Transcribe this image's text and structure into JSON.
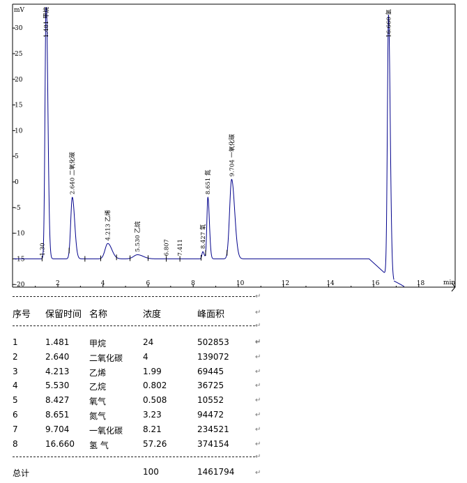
{
  "chart_data": {
    "type": "line",
    "y_unit": "mV",
    "x_unit": "min",
    "xlim": [
      0,
      18.5
    ],
    "ylim": [
      -20,
      34
    ],
    "x_ticks": [
      2,
      4,
      6,
      8,
      10,
      12,
      14,
      16,
      18
    ],
    "y_ticks": [
      30,
      25,
      20,
      15,
      10,
      5,
      0,
      -5,
      -10,
      -15,
      -20
    ],
    "baseline": -15,
    "peaks": [
      {
        "rt": 1.481,
        "label": "1.481 甲烷",
        "height": 36,
        "width": 0.05
      },
      {
        "rt": 2.64,
        "label": "2.640 二氧化碳",
        "height": -3,
        "width": 0.07
      },
      {
        "rt": 4.213,
        "label": "4.213 乙烯",
        "height": -12,
        "width": 0.12
      },
      {
        "rt": 5.53,
        "label": "5.530 乙烷",
        "height": -14.2,
        "width": 0.17
      },
      {
        "rt": 8.427,
        "label": "8.427 氧",
        "height": -13.6,
        "width": 0.04
      },
      {
        "rt": 8.651,
        "label": "8.651 氮",
        "height": -3,
        "width": 0.045
      },
      {
        "rt": 9.704,
        "label": "9.704 一氧化碳",
        "height": 0.5,
        "width": 0.09
      },
      {
        "rt": 16.66,
        "label": "16.660 氢",
        "height": 36,
        "width": 0.05
      }
    ],
    "minor_marks": [
      {
        "rt": 1.3,
        "label": "1.30"
      },
      {
        "rt": 6.807,
        "label": "6.807"
      },
      {
        "rt": 7.411,
        "label": "7.411"
      }
    ]
  },
  "report": {
    "headers": [
      "序号",
      "保留时间",
      "名称",
      "浓度",
      "峰面积"
    ],
    "rows": [
      [
        "1",
        "1.481",
        "甲烷",
        "24",
        "502853"
      ],
      [
        "2",
        "2.640",
        "二氧化碳",
        "4",
        "139072"
      ],
      [
        "3",
        "4.213",
        "乙烯",
        "1.99",
        "69445"
      ],
      [
        "4",
        "5.530",
        "乙烷",
        "0.802",
        "36725"
      ],
      [
        "5",
        "8.427",
        "氧气",
        "0.508",
        "10552"
      ],
      [
        "6",
        "8.651",
        "氮气",
        "3.23",
        "94472"
      ],
      [
        "7",
        "9.704",
        "一氧化碳",
        "8.21",
        "234521"
      ],
      [
        "8",
        "16.660",
        "氢 气",
        "57.26",
        "374154"
      ]
    ],
    "total_label": "总计",
    "total_conc": "100",
    "total_area": "1461794",
    "return_mark": "↵"
  }
}
